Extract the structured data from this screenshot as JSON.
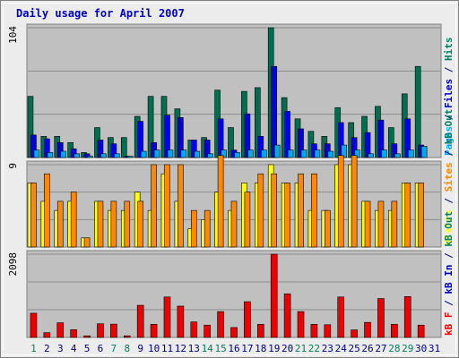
{
  "chart_data": {
    "type": "bar",
    "title": "Daily usage for April 2007",
    "categories": [
      "1",
      "2",
      "3",
      "4",
      "5",
      "6",
      "7",
      "8",
      "9",
      "10",
      "11",
      "12",
      "13",
      "14",
      "15",
      "16",
      "17",
      "18",
      "19",
      "20",
      "21",
      "22",
      "23",
      "24",
      "25",
      "26",
      "27",
      "28",
      "29",
      "30",
      "31"
    ],
    "weekend_days": [
      "1",
      "7",
      "8",
      "14",
      "15",
      "21",
      "22",
      "28",
      "29"
    ],
    "panels": [
      {
        "id": "hits",
        "max_label": "104",
        "ymax": 104,
        "side_labels": [
          {
            "text": "Pages",
            "color": "#00aaff"
          },
          {
            "text": " / ",
            "color": "#000080"
          },
          {
            "text": "Files",
            "color": "#0000c0"
          },
          {
            "text": " / ",
            "color": "#000080"
          },
          {
            "text": "Hits",
            "color": "#008060"
          }
        ],
        "series": [
          {
            "name": "Hits",
            "color": "#006f4f",
            "values": [
              49,
              17,
              17,
              12,
              4,
              24,
              16,
              16,
              33,
              49,
              49,
              39,
              14,
              16,
              54,
              24,
              53,
              56,
              104,
              48,
              31,
              21,
              17,
              40,
              28,
              33,
              41,
              24,
              51,
              73,
              0
            ]
          },
          {
            "name": "Files",
            "color": "#0000ee",
            "values": [
              18,
              15,
              12,
              7,
              3,
              14,
              11,
              1,
              29,
              12,
              34,
              32,
              14,
              14,
              31,
              6,
              35,
              17,
              73,
              37,
              23,
              11,
              11,
              28,
              16,
              20,
              30,
              11,
              31,
              10,
              0
            ]
          },
          {
            "name": "Pages",
            "color": "#00aaee",
            "values": [
              6,
              4,
              5,
              3,
              1,
              3,
              3,
              1,
              5,
              6,
              6,
              6,
              5,
              3,
              6,
              4,
              6,
              6,
              10,
              6,
              6,
              6,
              5,
              10,
              6,
              3,
              6,
              3,
              6,
              9,
              0
            ]
          }
        ]
      },
      {
        "id": "visits",
        "max_label": "9",
        "ymax": 9,
        "side_labels": [
          {
            "text": "Visits",
            "color": "#ffff00"
          },
          {
            "text": " / ",
            "color": "#000080"
          },
          {
            "text": "Sites",
            "color": "#ff8800"
          },
          {
            "text": " / ",
            "color": "#000080"
          },
          {
            "text": "kB Out",
            "color": "#008060"
          }
        ],
        "series": [
          {
            "name": "Visits",
            "color": "#ffff00",
            "values": [
              7,
              5,
              4,
              5,
              1,
              5,
              4,
              4,
              6,
              4,
              8,
              5,
              2,
              3,
              6,
              4,
              7,
              7,
              9,
              7,
              7,
              4,
              4,
              9,
              9,
              5,
              4,
              4,
              7,
              7,
              0
            ]
          },
          {
            "name": "Sites",
            "color": "#ff8800",
            "values": [
              7,
              8,
              5,
              6,
              1,
              5,
              5,
              5,
              5,
              9,
              9,
              9,
              4,
              4,
              10,
              5,
              6,
              8,
              8,
              7,
              8,
              8,
              4,
              10,
              10,
              5,
              5,
              5,
              7,
              7,
              0
            ]
          },
          {
            "name": "kB Out",
            "color": "#008060",
            "values": [
              0,
              0,
              0,
              0,
              0,
              0,
              0,
              0,
              0,
              0,
              0,
              0,
              0,
              0,
              0,
              0,
              0,
              0,
              0,
              0,
              0,
              0,
              0,
              0,
              0,
              0,
              0,
              0,
              0,
              0,
              0
            ]
          }
        ]
      },
      {
        "id": "kb",
        "max_label": "2098",
        "ymax": 2098,
        "side_labels": [
          {
            "text": "kB F",
            "color": "#ff0000"
          },
          {
            "text": " / ",
            "color": "#000080"
          },
          {
            "text": "kB In",
            "color": "#0000c0"
          },
          {
            "text": " / ",
            "color": "#000080"
          },
          {
            "text": "kB Out",
            "color": "#008060"
          }
        ],
        "series": [
          {
            "name": "kB F",
            "color": "#ee0000",
            "values": [
              610,
              120,
              370,
              195,
              40,
              345,
              335,
              40,
              810,
              330,
              1020,
              790,
              390,
              310,
              650,
              250,
              900,
              330,
              2098,
              1100,
              650,
              330,
              320,
              1020,
              190,
              380,
              980,
              330,
              1030,
              310,
              0
            ]
          }
        ]
      }
    ]
  },
  "colors": {
    "background": "#ececec",
    "plot_bg": "#c0c0c0",
    "title": "#0000cc",
    "weekday": "#000080",
    "weekend": "#008060"
  }
}
